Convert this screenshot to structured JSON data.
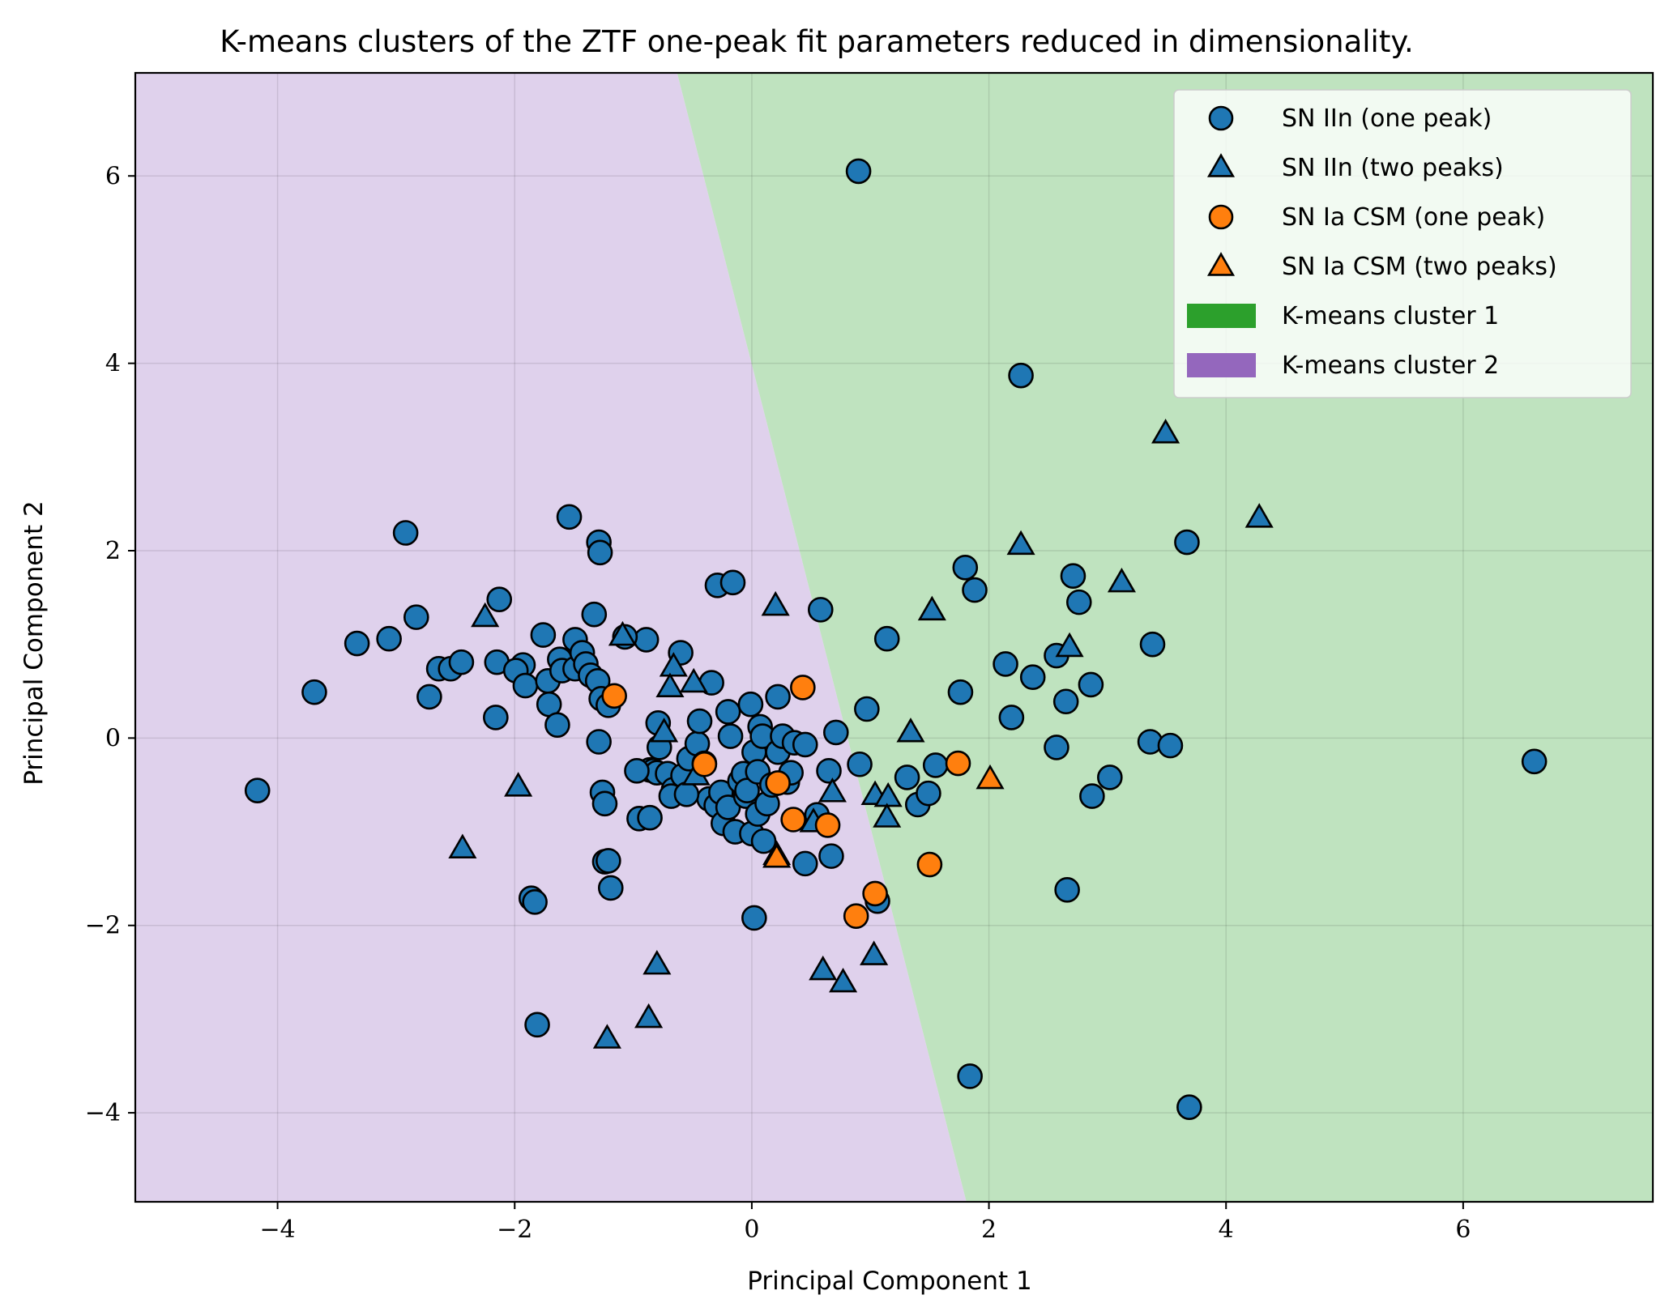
{
  "chart_data": {
    "type": "scatter",
    "title": "K-means clusters of the ZTF one-peak fit parameters reduced in dimensionality.",
    "xlabel": "Principal Component 1",
    "ylabel": "Principal Component 2",
    "xlim": [
      -5.2,
      7.6
    ],
    "ylim": [
      -4.95,
      7.1
    ],
    "xticks": [
      -4,
      -2,
      0,
      2,
      4,
      6
    ],
    "yticks": [
      -4,
      -2,
      0,
      2,
      4,
      6
    ],
    "xtick_labels": [
      "−4",
      "−2",
      "0",
      "2",
      "4",
      "6"
    ],
    "ytick_labels": [
      "−4",
      "−2",
      "0",
      "2",
      "4",
      "6"
    ],
    "grid": true,
    "legend_position": "top-right",
    "colors": {
      "sn_iin": "#1f77b4",
      "sn_ia_csm": "#ff7f0e",
      "cluster1": "#2ca02c",
      "cluster2": "#9467bd",
      "cluster1_bg": "#bfe3bf",
      "cluster2_bg": "#dfd1ec",
      "edge": "#000000"
    },
    "decision_boundary": {
      "description": "linear boundary between clusters",
      "points": [
        [
          -0.63,
          7.1
        ],
        [
          1.81,
          -4.95
        ]
      ]
    },
    "legend": [
      {
        "label": "SN IIn (one peak)",
        "marker": "circle",
        "color": "#1f77b4"
      },
      {
        "label": "SN IIn (two peaks)",
        "marker": "triangle",
        "color": "#1f77b4"
      },
      {
        "label": "SN Ia CSM (one peak)",
        "marker": "circle",
        "color": "#ff7f0e"
      },
      {
        "label": "SN Ia CSM (two peaks)",
        "marker": "triangle",
        "color": "#ff7f0e"
      },
      {
        "label": "K-means cluster 1",
        "marker": "patch",
        "color": "#2ca02c"
      },
      {
        "label": "K-means cluster 2",
        "marker": "patch",
        "color": "#9467bd"
      }
    ],
    "series": [
      {
        "name": "SN IIn (one peak)",
        "marker": "circle",
        "color": "#1f77b4",
        "points": [
          [
            0.9,
            6.05
          ],
          [
            2.27,
            3.87
          ],
          [
            3.67,
            2.09
          ],
          [
            -2.92,
            2.19
          ],
          [
            -1.54,
            2.36
          ],
          [
            -1.29,
            2.09
          ],
          [
            -1.28,
            1.98
          ],
          [
            -2.13,
            1.48
          ],
          [
            -2.83,
            1.29
          ],
          [
            -3.06,
            1.06
          ],
          [
            -3.33,
            1.01
          ],
          [
            -1.33,
            1.32
          ],
          [
            -1.76,
            1.1
          ],
          [
            -1.49,
            1.05
          ],
          [
            -0.89,
            1.05
          ],
          [
            -1.07,
            1.08
          ],
          [
            -3.69,
            0.49
          ],
          [
            -2.72,
            0.44
          ],
          [
            -2.64,
            0.74
          ],
          [
            -2.54,
            0.74
          ],
          [
            -2.45,
            0.81
          ],
          [
            -2.15,
            0.81
          ],
          [
            -1.93,
            0.78
          ],
          [
            -1.99,
            0.72
          ],
          [
            -1.91,
            0.56
          ],
          [
            -1.72,
            0.61
          ],
          [
            -1.62,
            0.84
          ],
          [
            -1.6,
            0.72
          ],
          [
            -1.49,
            0.74
          ],
          [
            -1.43,
            0.91
          ],
          [
            -1.4,
            0.79
          ],
          [
            -1.36,
            0.67
          ],
          [
            -1.3,
            0.61
          ],
          [
            -1.27,
            0.42
          ],
          [
            -1.21,
            0.35
          ],
          [
            -1.71,
            0.36
          ],
          [
            -1.64,
            0.14
          ],
          [
            -2.16,
            0.22
          ],
          [
            -1.29,
            -0.04
          ],
          [
            -0.6,
            0.91
          ],
          [
            -0.34,
            0.59
          ],
          [
            -0.29,
            1.63
          ],
          [
            -0.16,
            1.66
          ],
          [
            0.22,
            0.44
          ],
          [
            0.58,
            1.37
          ],
          [
            0.97,
            0.31
          ],
          [
            1.14,
            1.06
          ],
          [
            1.8,
            1.82
          ],
          [
            1.88,
            1.58
          ],
          [
            1.76,
            0.49
          ],
          [
            2.14,
            0.79
          ],
          [
            2.19,
            0.22
          ],
          [
            2.37,
            0.65
          ],
          [
            2.57,
            0.88
          ],
          [
            2.57,
            -0.1
          ],
          [
            2.65,
            0.39
          ],
          [
            2.71,
            1.73
          ],
          [
            2.76,
            1.45
          ],
          [
            2.86,
            0.57
          ],
          [
            2.87,
            -0.62
          ],
          [
            3.02,
            -0.42
          ],
          [
            3.36,
            -0.04
          ],
          [
            3.38,
            1.0
          ],
          [
            3.53,
            -0.08
          ],
          [
            3.69,
            -3.94
          ],
          [
            6.6,
            -0.25
          ],
          [
            1.84,
            -3.61
          ],
          [
            2.66,
            -1.62
          ],
          [
            -4.17,
            -0.56
          ],
          [
            -1.26,
            -0.58
          ],
          [
            -1.24,
            -0.7
          ],
          [
            -1.24,
            -1.32
          ],
          [
            -1.21,
            -1.31
          ],
          [
            -1.19,
            -1.6
          ],
          [
            -1.86,
            -1.71
          ],
          [
            -1.83,
            -1.75
          ],
          [
            -1.81,
            -3.06
          ],
          [
            -0.86,
            -0.34
          ],
          [
            -0.83,
            -0.35
          ],
          [
            -0.8,
            -0.37
          ],
          [
            -0.78,
            -0.1
          ],
          [
            -0.79,
            0.16
          ],
          [
            -0.71,
            -0.38
          ],
          [
            -0.66,
            -0.55
          ],
          [
            -0.68,
            -0.62
          ],
          [
            -0.58,
            -0.4
          ],
          [
            -0.53,
            -0.22
          ],
          [
            -0.46,
            -0.06
          ],
          [
            -0.44,
            0.18
          ],
          [
            -0.4,
            -0.27
          ],
          [
            -0.36,
            -0.65
          ],
          [
            -0.3,
            -0.72
          ],
          [
            -0.26,
            -0.58
          ],
          [
            -0.24,
            -0.91
          ],
          [
            -0.2,
            -0.74
          ],
          [
            -0.2,
            0.28
          ],
          [
            -0.18,
            0.02
          ],
          [
            -0.14,
            -1.0
          ],
          [
            -0.1,
            -0.46
          ],
          [
            -0.07,
            -0.38
          ],
          [
            -0.05,
            -0.62
          ],
          [
            -0.04,
            -0.56
          ],
          [
            -0.01,
            0.36
          ],
          [
            0.0,
            -1.02
          ],
          [
            0.02,
            -0.15
          ],
          [
            0.05,
            -0.81
          ],
          [
            0.05,
            -0.36
          ],
          [
            0.07,
            0.12
          ],
          [
            0.09,
            0.02
          ],
          [
            0.1,
            -1.1
          ],
          [
            0.13,
            -0.7
          ],
          [
            0.17,
            -0.5
          ],
          [
            0.22,
            -0.15
          ],
          [
            0.26,
            0.02
          ],
          [
            0.3,
            -0.47
          ],
          [
            0.33,
            -0.37
          ],
          [
            0.36,
            -0.05
          ],
          [
            0.45,
            -0.07
          ],
          [
            0.45,
            -1.34
          ],
          [
            0.55,
            -0.82
          ],
          [
            0.65,
            -0.35
          ],
          [
            0.67,
            -1.26
          ],
          [
            0.71,
            0.06
          ],
          [
            0.91,
            -0.28
          ],
          [
            1.31,
            -0.42
          ],
          [
            1.4,
            -0.71
          ],
          [
            1.49,
            -0.59
          ],
          [
            1.55,
            -0.29
          ],
          [
            1.06,
            -1.74
          ],
          [
            0.02,
            -1.92
          ],
          [
            -0.95,
            -0.86
          ],
          [
            -0.86,
            -0.85
          ],
          [
            -0.97,
            -0.35
          ],
          [
            -0.55,
            -0.6
          ]
        ]
      },
      {
        "name": "SN IIn (two peaks)",
        "marker": "triangle",
        "color": "#1f77b4",
        "points": [
          [
            3.49,
            3.25
          ],
          [
            4.28,
            2.35
          ],
          [
            2.27,
            2.06
          ],
          [
            3.12,
            1.66
          ],
          [
            1.52,
            1.36
          ],
          [
            0.2,
            1.41
          ],
          [
            2.68,
            0.97
          ],
          [
            1.34,
            0.06
          ],
          [
            -2.25,
            1.29
          ],
          [
            -1.09,
            1.09
          ],
          [
            -0.66,
            0.76
          ],
          [
            -0.49,
            0.59
          ],
          [
            -0.69,
            0.54
          ],
          [
            -0.74,
            0.06
          ],
          [
            -0.47,
            -0.4
          ],
          [
            -1.97,
            -0.52
          ],
          [
            -2.44,
            -1.18
          ],
          [
            1.04,
            -0.61
          ],
          [
            1.15,
            -0.63
          ],
          [
            0.68,
            -0.58
          ],
          [
            1.14,
            -0.85
          ],
          [
            0.52,
            -0.9
          ],
          [
            0.21,
            -1.25
          ],
          [
            -0.8,
            -2.42
          ],
          [
            -0.87,
            -2.99
          ],
          [
            -1.22,
            -3.21
          ],
          [
            0.6,
            -2.48
          ],
          [
            0.77,
            -2.61
          ],
          [
            1.03,
            -2.32
          ]
        ]
      },
      {
        "name": "SN Ia CSM (one peak)",
        "marker": "circle",
        "color": "#ff7f0e",
        "points": [
          [
            -1.16,
            0.45
          ],
          [
            0.43,
            0.54
          ],
          [
            -0.4,
            -0.28
          ],
          [
            0.22,
            -0.48
          ],
          [
            0.35,
            -0.87
          ],
          [
            0.64,
            -0.93
          ],
          [
            1.74,
            -0.27
          ],
          [
            1.5,
            -1.35
          ],
          [
            1.04,
            -1.66
          ],
          [
            0.88,
            -1.9
          ]
        ]
      },
      {
        "name": "SN Ia CSM (two peaks)",
        "marker": "triangle",
        "color": "#ff7f0e",
        "points": [
          [
            2.01,
            -0.44
          ],
          [
            0.21,
            -1.28
          ]
        ]
      }
    ]
  }
}
